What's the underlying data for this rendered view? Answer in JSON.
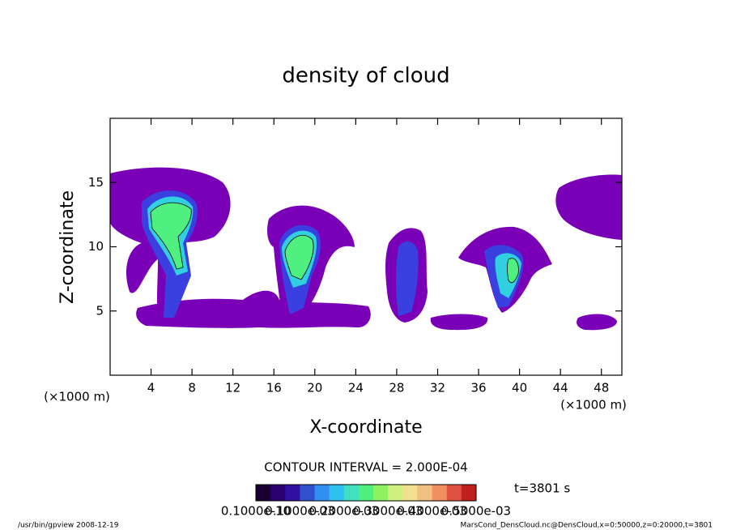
{
  "chart_data": {
    "type": "contour",
    "title": "density of cloud",
    "x_label": "X-coordinate",
    "y_label": "Z-coordinate",
    "x_unit": "(×1000 m)",
    "y_unit": "(×1000 m)",
    "xlim": [
      0,
      50
    ],
    "ylim": [
      0,
      20
    ],
    "xticks": [
      4,
      8,
      12,
      16,
      20,
      24,
      28,
      32,
      36,
      40,
      44,
      48
    ],
    "yticks": [
      5,
      10,
      15
    ],
    "contour_interval": "CONTOUR INTERVAL = 2.000E-04",
    "time_label": "t=3801 s",
    "colorbar": {
      "colors": [
        "#1a0030",
        "#2a0070",
        "#3010a0",
        "#3050d0",
        "#3090f0",
        "#30c0f0",
        "#40e0c0",
        "#50f080",
        "#90f060",
        "#d0f080",
        "#f0e090",
        "#f0c080",
        "#f09060",
        "#e05040",
        "#c02020"
      ],
      "labels": [
        "0.1000e-10",
        "0.1000e-03",
        "0.2000e-03",
        "0.3000e-03",
        "0.4000e-03",
        "0.5000e-03"
      ]
    },
    "footer_left": "/usr/bin/gpview  2008-12-19",
    "footer_right": "MarsCond_DensCloud.nc@DensCloud,x=0:50000,z=0:20000,t=3801"
  }
}
